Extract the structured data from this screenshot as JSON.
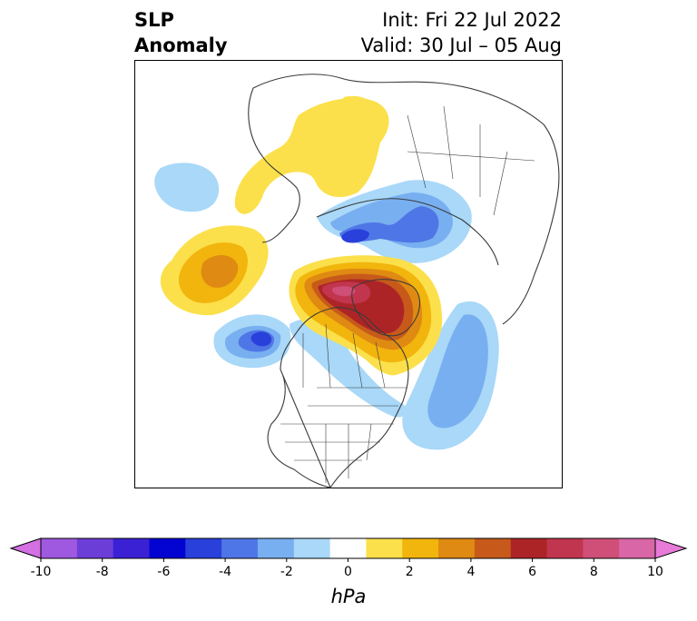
{
  "title": {
    "left_line1": "SLP",
    "left_line2": "Anomaly",
    "init": "Init: Fri 22 Jul 2022",
    "valid": "Valid: 30 Jul – 05 Aug"
  },
  "colorbar": {
    "unit": "hPa",
    "ticks": [
      "-10",
      "-8",
      "-6",
      "-4",
      "-2",
      "0",
      "2",
      "4",
      "6",
      "8",
      "10"
    ],
    "colors": [
      "#d46fe4",
      "#9f58e0",
      "#6c3ed8",
      "#3a22d4",
      "#0404d2",
      "#2a40da",
      "#4f76e6",
      "#78aff0",
      "#a9d8f8",
      "#ffffff",
      "#fbe04b",
      "#f2b50d",
      "#df8a13",
      "#c75a1a",
      "#ad2427",
      "#c2354e",
      "#cf4f78",
      "#d966a6",
      "#e87ad8"
    ]
  },
  "anomaly_colors": {
    "neg1": "#a9d8f8",
    "neg2": "#78aff0",
    "neg3": "#4f76e6",
    "neg4": "#2a40da",
    "pos1": "#fbe04b",
    "pos2": "#f2b50d",
    "pos3": "#df8a13",
    "pos4": "#c75a1a",
    "pos5": "#ad2427",
    "pos6": "#c2354e",
    "pos7": "#cf4f78"
  }
}
